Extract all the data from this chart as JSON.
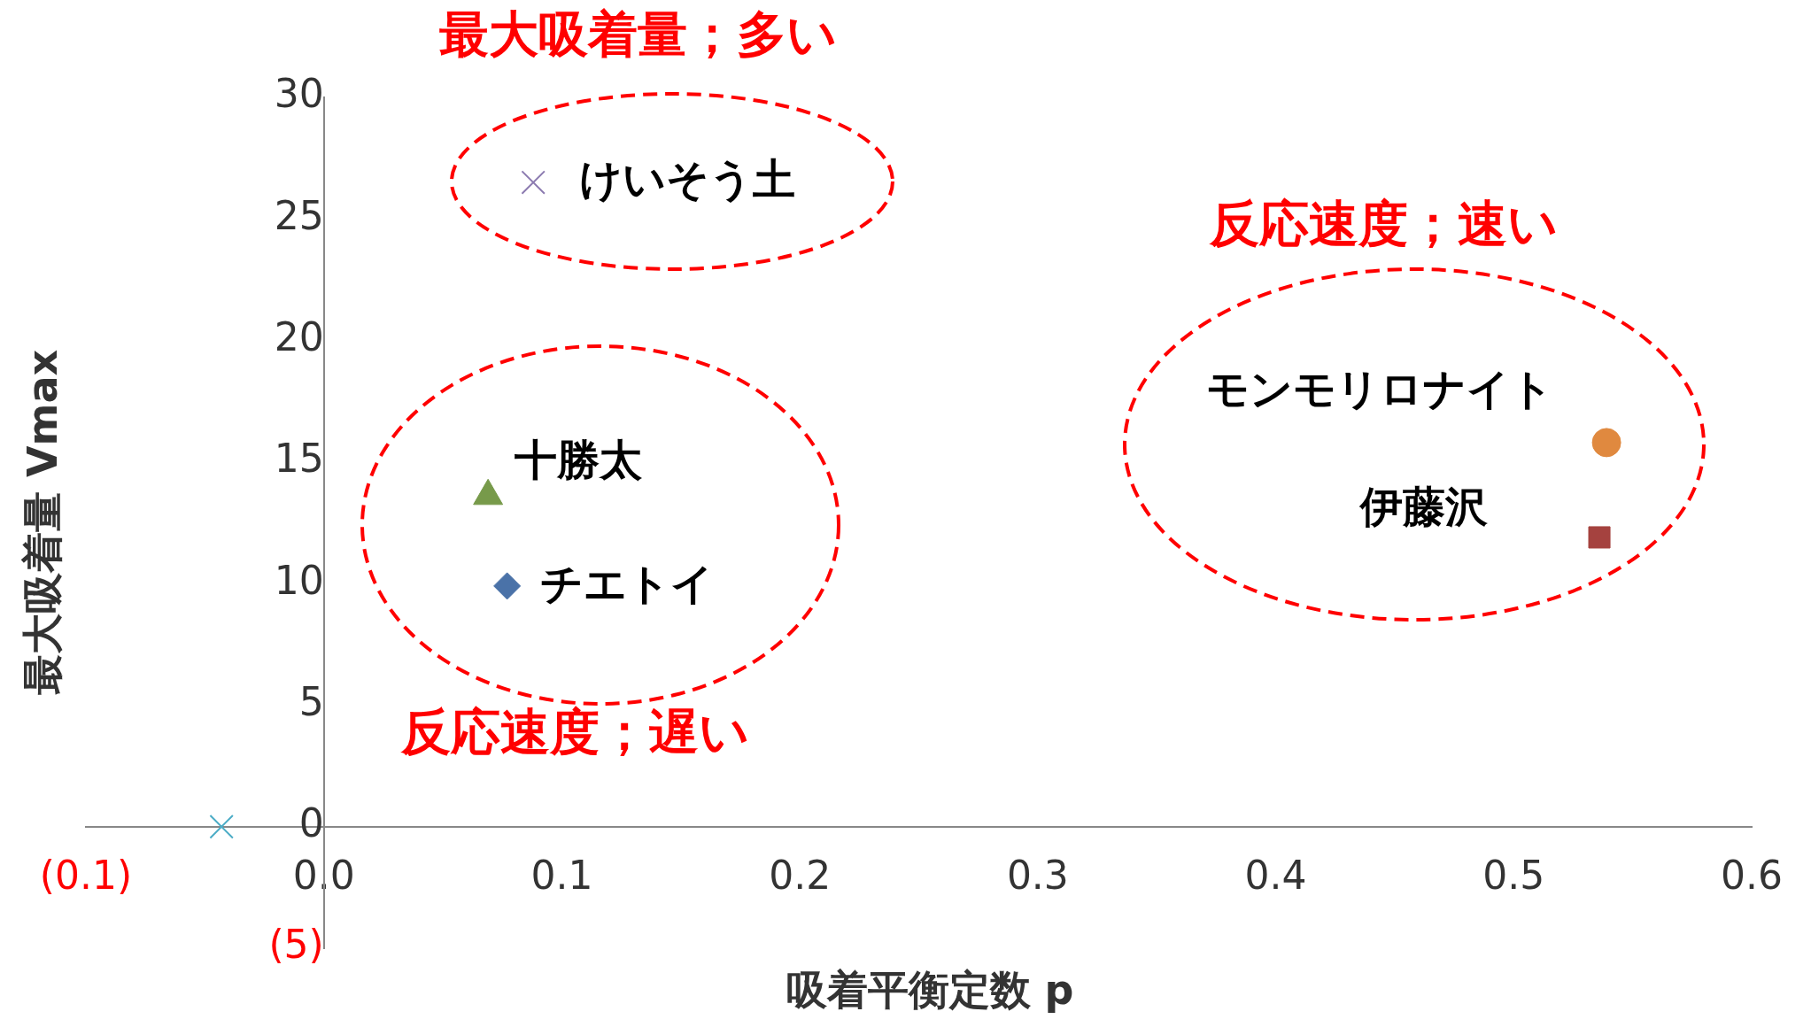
{
  "chart_data": {
    "type": "scatter",
    "xlabel": "吸着平衡定数 p",
    "ylabel": "最大吸着量 Vmax",
    "annotations": [
      "最大吸着量；多い",
      "反応速度；速い",
      "反応速度；遅い"
    ],
    "series": [
      {
        "name": "けいそう土",
        "color": "#8c7bb0",
        "marker": "cross",
        "x": [
          0.088
        ],
        "values": [
          26.5
        ]
      },
      {
        "name": "十勝太",
        "color": "#779a4a",
        "marker": "triangle",
        "x": [
          0.069
        ],
        "values": [
          13.6
        ]
      },
      {
        "name": "チエトイ",
        "color": "#4a72a8",
        "marker": "diamond",
        "x": [
          0.077
        ],
        "values": [
          9.9
        ]
      },
      {
        "name": "モンモリロナイト",
        "color": "#e0893f",
        "marker": "circle",
        "x": [
          0.539
        ],
        "values": [
          15.8
        ]
      },
      {
        "name": "伊藤沢",
        "color": "#a5423f",
        "marker": "square",
        "x": [
          0.536
        ],
        "values": [
          11.9
        ]
      },
      {
        "color": "#4bacc6",
        "marker": "cross",
        "x": [
          -0.043
        ],
        "values": [
          0
        ]
      }
    ],
    "xlim": [
      -0.1,
      0.6
    ],
    "xticks": [
      {
        "value": -0.1,
        "label": "(0.1)"
      },
      {
        "value": 0,
        "label": "0.0"
      },
      0.1,
      0.2,
      0.3,
      0.4,
      0.5,
      0.6
    ],
    "ylim": [
      -5,
      30
    ],
    "yticks": [
      {
        "value": -5,
        "label": "(5)"
      },
      0,
      5,
      10,
      15,
      20,
      25,
      30
    ],
    "grid": false,
    "legend": false
  }
}
